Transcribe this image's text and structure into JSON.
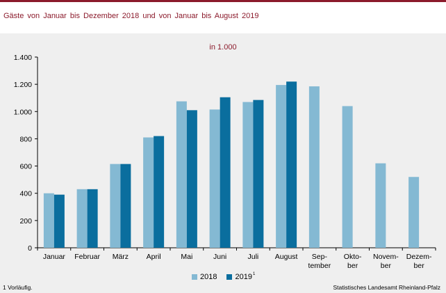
{
  "title": "Gäste von Januar bis Dezember 2018 und von Januar bis August 2019",
  "unit_label": "in 1.000",
  "footnote": "1 Vorläufig.",
  "source": "Statistisches Landesamt Rheinland-Pfalz",
  "legend": {
    "series_2018": "2018",
    "series_2019": "2019",
    "series_2019_sup": "1"
  },
  "colors": {
    "brand": "#8b1a2b",
    "series_2018": "#84b9d3",
    "series_2019": "#0a6e9e",
    "panel": "#efefef"
  },
  "chart_data": {
    "type": "bar",
    "title": "Gäste von Januar bis Dezember 2018 und von Januar bis August 2019",
    "subtitle": "in 1.000",
    "categories": [
      [
        "Januar"
      ],
      [
        "Februar"
      ],
      [
        "März"
      ],
      [
        "April"
      ],
      [
        "Mai"
      ],
      [
        "Juni"
      ],
      [
        "Juli"
      ],
      [
        "August"
      ],
      [
        "Sep-",
        "tember"
      ],
      [
        "Okto-",
        "ber"
      ],
      [
        "Novem-",
        "ber"
      ],
      [
        "Dezem-",
        "ber"
      ]
    ],
    "series": [
      {
        "name": "2018",
        "values": [
          400,
          430,
          615,
          810,
          1075,
          1015,
          1070,
          1195,
          1185,
          1040,
          620,
          520
        ]
      },
      {
        "name": "2019",
        "values": [
          390,
          430,
          615,
          820,
          1010,
          1105,
          1085,
          1220,
          null,
          null,
          null,
          null
        ]
      }
    ],
    "ylim": [
      0,
      1400
    ],
    "yticks": [
      0,
      200,
      400,
      600,
      800,
      1000,
      1200,
      1400
    ],
    "ytick_labels": [
      "0",
      "200",
      "400",
      "600",
      "800",
      "1.000",
      "1.200",
      "1.400"
    ],
    "legend_position": "bottom-center",
    "grid": false
  }
}
